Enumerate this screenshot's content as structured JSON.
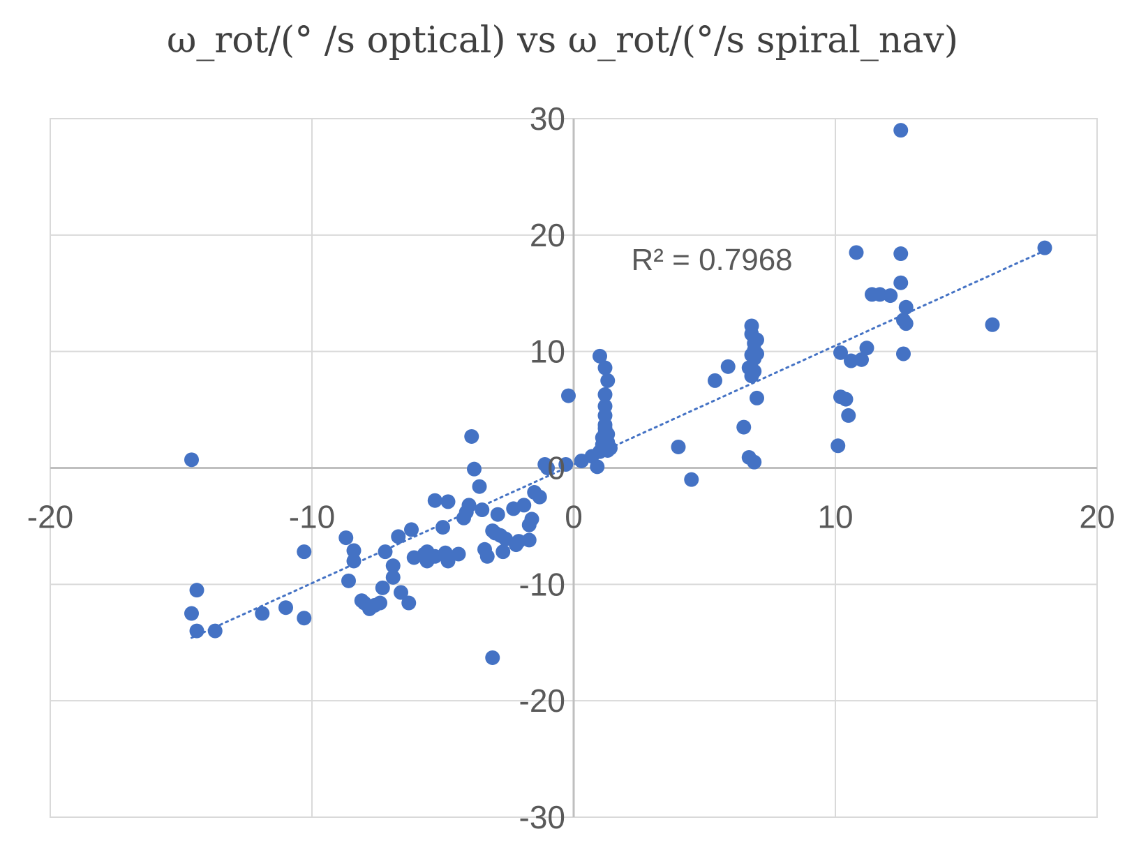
{
  "chart_data": {
    "type": "scatter",
    "title": "ω_rot/(° /s optical) vs ω_rot/(°/s spiral_nav)",
    "xlabel": "",
    "ylabel": "",
    "xlim": [
      -20,
      20
    ],
    "ylim": [
      -30,
      30
    ],
    "x_ticks": [
      -20,
      -10,
      0,
      10,
      20
    ],
    "y_ticks": [
      -30,
      -20,
      -10,
      0,
      10,
      20,
      30
    ],
    "x_tick_labels": [
      "-20",
      "-10",
      "0",
      "10",
      "20"
    ],
    "y_tick_labels": [
      "-30",
      "-20",
      "-10",
      "0",
      "10",
      "20",
      "30"
    ],
    "grid": true,
    "legend": "none",
    "marker_color": "#4472C4",
    "gridline_color": "#D9D9D9",
    "axis_color": "#BFBFBF",
    "series": [
      {
        "x": [
          -14.6,
          -14.6,
          -14.4,
          -14.4,
          -13.7,
          -11.9,
          -11.0,
          -10.3,
          -10.3,
          -8.7,
          -8.6,
          -8.4,
          -8.4,
          -8.1,
          -8.0,
          -7.8,
          -7.6,
          -7.4,
          -7.3,
          -7.2,
          -6.9,
          -6.9,
          -6.7,
          -6.6,
          -6.3,
          -6.2,
          -6.1,
          -5.7,
          -5.6,
          -5.6,
          -5.3,
          -5.3,
          -5.0,
          -4.9,
          -4.8,
          -4.8,
          -4.4,
          -4.2,
          -4.1,
          -4.0,
          -3.9,
          -3.8,
          -3.6,
          -3.5,
          -3.4,
          -3.3,
          -3.1,
          -3.1,
          -3.0,
          -2.9,
          -2.8,
          -2.7,
          -2.6,
          -2.3,
          -2.2,
          -2.1,
          -1.9,
          -1.7,
          -1.7,
          -1.6,
          -1.5,
          -1.3,
          -1.1,
          -1.0,
          -0.3,
          -0.2,
          0.3,
          0.7,
          0.9,
          1.0,
          1.0,
          1.1,
          1.1,
          1.2,
          1.2,
          1.2,
          1.2,
          1.2,
          1.2,
          1.2,
          1.3,
          1.3,
          1.3,
          1.3,
          1.4,
          4.0,
          4.5,
          5.4,
          5.9,
          6.5,
          6.7,
          6.7,
          6.8,
          6.8,
          6.8,
          6.8,
          6.9,
          6.9,
          6.9,
          6.9,
          6.9,
          7.0,
          7.0,
          7.0,
          10.1,
          10.2,
          10.2,
          10.4,
          10.5,
          10.6,
          10.8,
          11.0,
          11.2,
          11.4,
          11.7,
          12.1,
          12.5,
          12.5,
          12.5,
          12.6,
          12.6,
          12.7,
          12.7,
          16.0,
          18.0
        ],
        "y": [
          0.7,
          -12.5,
          -10.5,
          -14.0,
          -14.0,
          -12.5,
          -12.0,
          -7.2,
          -12.9,
          -6.0,
          -9.7,
          -7.1,
          -8.0,
          -11.4,
          -11.6,
          -12.1,
          -11.8,
          -11.6,
          -10.3,
          -7.2,
          -8.4,
          -9.4,
          -5.9,
          -10.7,
          -11.6,
          -5.3,
          -7.7,
          -7.4,
          -8.0,
          -7.2,
          -2.8,
          -7.6,
          -5.1,
          -7.3,
          -8.0,
          -2.9,
          -7.4,
          -4.3,
          -3.8,
          -3.2,
          2.7,
          -0.1,
          -1.6,
          -3.6,
          -7.0,
          -7.6,
          -5.4,
          -16.3,
          -5.6,
          -4.0,
          -5.8,
          -7.2,
          -6.1,
          -3.5,
          -6.6,
          -6.3,
          -3.2,
          -4.9,
          -6.2,
          -4.4,
          -2.1,
          -2.5,
          0.3,
          0.0,
          0.3,
          6.2,
          0.6,
          1.0,
          0.1,
          1.4,
          9.6,
          2.0,
          2.6,
          3.0,
          3.4,
          3.7,
          4.5,
          5.3,
          6.3,
          8.6,
          2.2,
          2.9,
          1.5,
          7.5,
          1.7,
          1.8,
          -1.0,
          7.5,
          8.7,
          3.5,
          8.6,
          0.9,
          7.9,
          9.7,
          11.5,
          12.2,
          0.5,
          8.3,
          9.4,
          10.1,
          10.7,
          6.0,
          9.8,
          11.0,
          1.9,
          6.1,
          9.9,
          5.9,
          4.5,
          9.2,
          18.5,
          9.3,
          10.3,
          14.9,
          14.9,
          14.8,
          29.0,
          18.4,
          15.9,
          9.8,
          12.7,
          13.8,
          12.4,
          12.3,
          18.9
        ]
      }
    ],
    "trendline": {
      "style": "dotted",
      "x_range": [
        -14.6,
        18.0
      ],
      "slope": 1.02,
      "intercept": 0.3,
      "label": "R² = 0.7968"
    }
  }
}
